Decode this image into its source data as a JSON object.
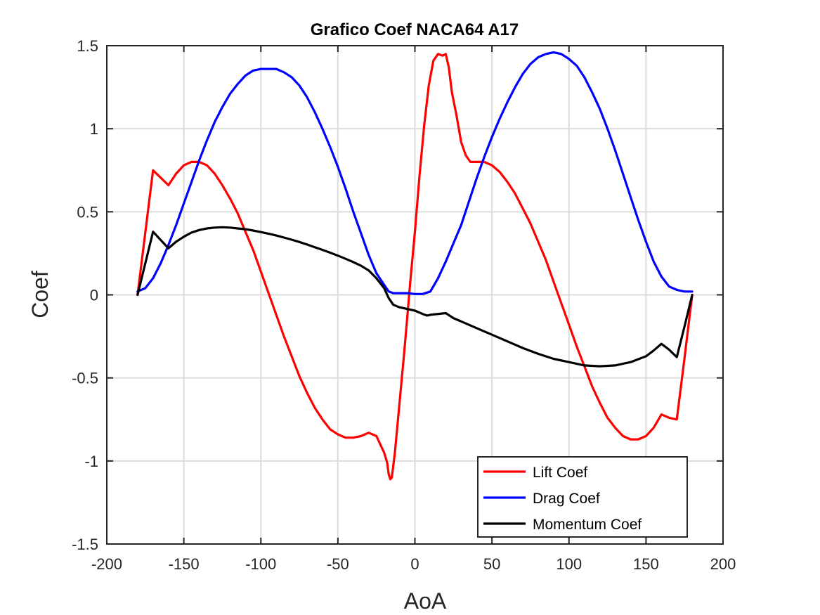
{
  "chart_data": {
    "type": "line",
    "title": "Grafico Coef NACA64 A17",
    "xlabel": "AoA",
    "ylabel": "Coef",
    "xlim": [
      -200,
      200
    ],
    "ylim": [
      -1.5,
      1.5
    ],
    "xticks": [
      -200,
      -150,
      -100,
      -50,
      0,
      50,
      100,
      150,
      200
    ],
    "yticks": [
      -1.5,
      -1,
      -0.5,
      0,
      0.5,
      1,
      1.5
    ],
    "xtick_labels": [
      "-200",
      "-150",
      "-100",
      "-50",
      "0",
      "50",
      "100",
      "150",
      "200"
    ],
    "ytick_labels": [
      "-1.5",
      "-1",
      "-0.5",
      "0",
      "0.5",
      "1",
      "1.5"
    ],
    "grid": true,
    "legend_position": "bottom-right",
    "series": [
      {
        "name": "Lift Coef",
        "color": "#ff0000",
        "points": [
          [
            -180,
            0
          ],
          [
            -170,
            0.75
          ],
          [
            -160,
            0.66
          ],
          [
            -155,
            0.73
          ],
          [
            -150,
            0.78
          ],
          [
            -145,
            0.8
          ],
          [
            -140,
            0.8
          ],
          [
            -135,
            0.78
          ],
          [
            -130,
            0.73
          ],
          [
            -125,
            0.66
          ],
          [
            -120,
            0.58
          ],
          [
            -115,
            0.49
          ],
          [
            -110,
            0.38
          ],
          [
            -105,
            0.27
          ],
          [
            -100,
            0.14
          ],
          [
            -95,
            0.01
          ],
          [
            -90,
            -0.12
          ],
          [
            -85,
            -0.25
          ],
          [
            -80,
            -0.37
          ],
          [
            -75,
            -0.49
          ],
          [
            -70,
            -0.59
          ],
          [
            -65,
            -0.68
          ],
          [
            -60,
            -0.75
          ],
          [
            -55,
            -0.81
          ],
          [
            -50,
            -0.84
          ],
          [
            -45,
            -0.86
          ],
          [
            -40,
            -0.86
          ],
          [
            -35,
            -0.85
          ],
          [
            -30,
            -0.83
          ],
          [
            -25,
            -0.85
          ],
          [
            -20,
            -0.95
          ],
          [
            -18,
            -1.01
          ],
          [
            -17,
            -1.08
          ],
          [
            -16,
            -1.11
          ],
          [
            -15,
            -1.1
          ],
          [
            -13,
            -0.95
          ],
          [
            -10,
            -0.65
          ],
          [
            -7,
            -0.35
          ],
          [
            -5,
            -0.14
          ],
          [
            -3,
            0.08
          ],
          [
            0,
            0.38
          ],
          [
            3,
            0.72
          ],
          [
            6,
            1.02
          ],
          [
            9,
            1.26
          ],
          [
            12,
            1.41
          ],
          [
            15,
            1.45
          ],
          [
            18,
            1.44
          ],
          [
            20,
            1.45
          ],
          [
            22,
            1.37
          ],
          [
            24,
            1.22
          ],
          [
            27,
            1.08
          ],
          [
            30,
            0.92
          ],
          [
            33,
            0.84
          ],
          [
            36,
            0.8
          ],
          [
            40,
            0.8
          ],
          [
            45,
            0.8
          ],
          [
            50,
            0.78
          ],
          [
            55,
            0.74
          ],
          [
            60,
            0.68
          ],
          [
            65,
            0.61
          ],
          [
            70,
            0.52
          ],
          [
            75,
            0.43
          ],
          [
            80,
            0.32
          ],
          [
            85,
            0.21
          ],
          [
            90,
            0.08
          ],
          [
            95,
            -0.05
          ],
          [
            100,
            -0.18
          ],
          [
            105,
            -0.31
          ],
          [
            110,
            -0.43
          ],
          [
            115,
            -0.55
          ],
          [
            120,
            -0.65
          ],
          [
            125,
            -0.74
          ],
          [
            130,
            -0.8
          ],
          [
            135,
            -0.85
          ],
          [
            140,
            -0.87
          ],
          [
            145,
            -0.87
          ],
          [
            150,
            -0.85
          ],
          [
            155,
            -0.8
          ],
          [
            160,
            -0.72
          ],
          [
            165,
            -0.74
          ],
          [
            170,
            -0.75
          ],
          [
            175,
            -0.38
          ],
          [
            180,
            0
          ]
        ]
      },
      {
        "name": "Drag Coef",
        "color": "#0000ff",
        "points": [
          [
            -180,
            0.02
          ],
          [
            -175,
            0.04
          ],
          [
            -170,
            0.1
          ],
          [
            -165,
            0.19
          ],
          [
            -160,
            0.3
          ],
          [
            -155,
            0.42
          ],
          [
            -150,
            0.55
          ],
          [
            -145,
            0.68
          ],
          [
            -140,
            0.81
          ],
          [
            -135,
            0.93
          ],
          [
            -130,
            1.04
          ],
          [
            -125,
            1.13
          ],
          [
            -120,
            1.21
          ],
          [
            -115,
            1.27
          ],
          [
            -110,
            1.32
          ],
          [
            -105,
            1.35
          ],
          [
            -100,
            1.36
          ],
          [
            -95,
            1.36
          ],
          [
            -90,
            1.36
          ],
          [
            -85,
            1.34
          ],
          [
            -80,
            1.31
          ],
          [
            -75,
            1.26
          ],
          [
            -70,
            1.19
          ],
          [
            -65,
            1.1
          ],
          [
            -60,
            1.0
          ],
          [
            -55,
            0.89
          ],
          [
            -50,
            0.77
          ],
          [
            -45,
            0.64
          ],
          [
            -40,
            0.5
          ],
          [
            -35,
            0.37
          ],
          [
            -30,
            0.24
          ],
          [
            -25,
            0.13
          ],
          [
            -20,
            0.06
          ],
          [
            -17,
            0.02
          ],
          [
            -14,
            0.01
          ],
          [
            -10,
            0.01
          ],
          [
            -5,
            0.01
          ],
          [
            0,
            0.005
          ],
          [
            5,
            0.005
          ],
          [
            10,
            0.02
          ],
          [
            15,
            0.1
          ],
          [
            20,
            0.2
          ],
          [
            25,
            0.31
          ],
          [
            30,
            0.42
          ],
          [
            35,
            0.56
          ],
          [
            40,
            0.7
          ],
          [
            45,
            0.83
          ],
          [
            50,
            0.95
          ],
          [
            55,
            1.06
          ],
          [
            60,
            1.16
          ],
          [
            65,
            1.25
          ],
          [
            70,
            1.33
          ],
          [
            75,
            1.39
          ],
          [
            80,
            1.43
          ],
          [
            85,
            1.45
          ],
          [
            90,
            1.46
          ],
          [
            95,
            1.45
          ],
          [
            100,
            1.42
          ],
          [
            105,
            1.38
          ],
          [
            110,
            1.31
          ],
          [
            115,
            1.22
          ],
          [
            120,
            1.12
          ],
          [
            125,
            1.0
          ],
          [
            130,
            0.87
          ],
          [
            135,
            0.73
          ],
          [
            140,
            0.59
          ],
          [
            145,
            0.45
          ],
          [
            150,
            0.32
          ],
          [
            155,
            0.2
          ],
          [
            160,
            0.11
          ],
          [
            165,
            0.05
          ],
          [
            170,
            0.03
          ],
          [
            175,
            0.02
          ],
          [
            180,
            0.02
          ]
        ]
      },
      {
        "name": "Momentum Coef",
        "color": "#000000",
        "points": [
          [
            -180,
            0
          ],
          [
            -170,
            0.38
          ],
          [
            -160,
            0.28
          ],
          [
            -155,
            0.32
          ],
          [
            -150,
            0.35
          ],
          [
            -145,
            0.375
          ],
          [
            -140,
            0.39
          ],
          [
            -135,
            0.4
          ],
          [
            -130,
            0.405
          ],
          [
            -125,
            0.407
          ],
          [
            -120,
            0.405
          ],
          [
            -115,
            0.4
          ],
          [
            -110,
            0.395
          ],
          [
            -105,
            0.387
          ],
          [
            -100,
            0.378
          ],
          [
            -95,
            0.368
          ],
          [
            -90,
            0.357
          ],
          [
            -85,
            0.345
          ],
          [
            -80,
            0.332
          ],
          [
            -75,
            0.318
          ],
          [
            -70,
            0.303
          ],
          [
            -65,
            0.287
          ],
          [
            -60,
            0.271
          ],
          [
            -55,
            0.254
          ],
          [
            -50,
            0.236
          ],
          [
            -45,
            0.217
          ],
          [
            -40,
            0.197
          ],
          [
            -35,
            0.175
          ],
          [
            -30,
            0.147
          ],
          [
            -25,
            0.1
          ],
          [
            -20,
            0.04
          ],
          [
            -17,
            -0.02
          ],
          [
            -14,
            -0.06
          ],
          [
            -10,
            -0.075
          ],
          [
            -5,
            -0.085
          ],
          [
            0,
            -0.095
          ],
          [
            5,
            -0.115
          ],
          [
            8,
            -0.125
          ],
          [
            10,
            -0.12
          ],
          [
            15,
            -0.115
          ],
          [
            20,
            -0.11
          ],
          [
            25,
            -0.14
          ],
          [
            30,
            -0.16
          ],
          [
            40,
            -0.2
          ],
          [
            50,
            -0.24
          ],
          [
            60,
            -0.28
          ],
          [
            70,
            -0.32
          ],
          [
            80,
            -0.355
          ],
          [
            90,
            -0.385
          ],
          [
            100,
            -0.405
          ],
          [
            110,
            -0.425
          ],
          [
            120,
            -0.43
          ],
          [
            130,
            -0.425
          ],
          [
            140,
            -0.405
          ],
          [
            150,
            -0.37
          ],
          [
            155,
            -0.335
          ],
          [
            160,
            -0.295
          ],
          [
            165,
            -0.33
          ],
          [
            170,
            -0.375
          ],
          [
            175,
            -0.19
          ],
          [
            180,
            0
          ]
        ]
      }
    ]
  }
}
